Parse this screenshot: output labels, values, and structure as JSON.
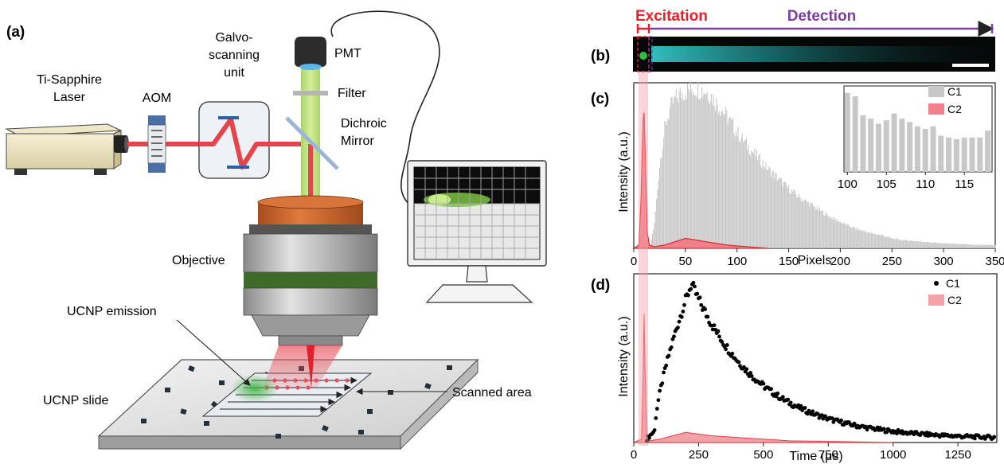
{
  "panel_labels": {
    "a": "(a)",
    "b": "(b)",
    "c": "(c)",
    "d": "(d)"
  },
  "setup": {
    "laser_line1": "Ti-Sapphire",
    "laser_line2": "Laser",
    "aom": "AOM",
    "galvo_line1": "Galvo-",
    "galvo_line2": "scanning",
    "galvo_line3": "unit",
    "pmt": "PMT",
    "filter": "Filter",
    "dichroic_line1": "Dichroic",
    "dichroic_line2": "Mirror",
    "objective": "Objective",
    "ucnp_emission": "UCNP emission",
    "ucnp_slide": "UCNP slide",
    "scanned_area": "Scanned area"
  },
  "panel_b": {
    "excitation": "Excitation",
    "detection": "Detection"
  },
  "colors": {
    "excitation": "#e8202a",
    "detection": "#7b3fa0",
    "laser_beam": "#e4454a",
    "emission_green": "#7dc241",
    "c1_bars": "#c8c8c8",
    "c2_red": "#e0404a",
    "c1_points": "#000000",
    "c2_fill": "#f4a0a6",
    "objective_copper": "#c8602a",
    "objective_green": "#3e6b2a"
  },
  "chart_data": [
    {
      "id": "c",
      "type": "bar",
      "xlabel": "Pixels",
      "ylabel": "Intensity (a.u.)",
      "xlim": [
        0,
        350
      ],
      "xticks": [
        0,
        50,
        100,
        150,
        200,
        250,
        300,
        350
      ],
      "legend": [
        "C1",
        "C2"
      ],
      "legend_position": "top-right",
      "series": [
        {
          "name": "C1",
          "style": "bars",
          "x": [
            16,
            20,
            25,
            30,
            35,
            40,
            45,
            50,
            55,
            60,
            65,
            70,
            75,
            80,
            85,
            90,
            95,
            100,
            110,
            120,
            130,
            140,
            150,
            160,
            170,
            180,
            190,
            200,
            210,
            220,
            230,
            240,
            250,
            260,
            270,
            280,
            290,
            300,
            310,
            320,
            330,
            340,
            348
          ],
          "y": [
            0.02,
            0.15,
            0.5,
            0.72,
            0.84,
            0.9,
            0.93,
            0.95,
            0.96,
            0.97,
            0.96,
            0.95,
            0.92,
            0.88,
            0.84,
            0.8,
            0.75,
            0.7,
            0.62,
            0.55,
            0.48,
            0.42,
            0.36,
            0.31,
            0.27,
            0.23,
            0.19,
            0.16,
            0.13,
            0.11,
            0.09,
            0.08,
            0.06,
            0.05,
            0.045,
            0.04,
            0.035,
            0.03,
            0.028,
            0.025,
            0.02,
            0.02,
            0.02
          ]
        },
        {
          "name": "C2",
          "style": "filled-peak",
          "x": [
            0,
            5,
            7,
            9,
            10,
            11,
            13,
            15,
            20,
            30,
            40,
            50,
            60,
            70,
            80,
            90,
            100,
            110,
            120,
            130
          ],
          "y": [
            0,
            0.02,
            0.3,
            0.78,
            0.82,
            0.6,
            0.1,
            0.02,
            0.01,
            0.02,
            0.04,
            0.06,
            0.05,
            0.04,
            0.03,
            0.02,
            0.015,
            0.01,
            0.005,
            0
          ]
        }
      ],
      "inset": {
        "type": "bar",
        "xlim": [
          100,
          119
        ],
        "xticks": [
          100,
          105,
          110,
          115
        ],
        "x": [
          100,
          101,
          102,
          103,
          104,
          105,
          106,
          107,
          108,
          109,
          110,
          111,
          112,
          113,
          114,
          115,
          116,
          117,
          118
        ],
        "values": [
          0.92,
          0.88,
          0.66,
          0.62,
          0.56,
          0.6,
          0.68,
          0.62,
          0.58,
          0.53,
          0.5,
          0.53,
          0.42,
          0.4,
          0.38,
          0.4,
          0.4,
          0.4,
          0.48
        ]
      }
    },
    {
      "id": "d",
      "type": "scatter",
      "xlabel": "Time (μs)",
      "ylabel": "Intensity (a.u.)",
      "xlim": [
        0,
        1400
      ],
      "xticks": [
        0,
        250,
        500,
        750,
        1000,
        1250
      ],
      "legend": [
        "C1",
        "C2"
      ],
      "legend_position": "top-right",
      "c1_model": {
        "peak_time": 220,
        "decay_constant": 260,
        "noise": 0.05
      },
      "series": [
        {
          "name": "C2",
          "style": "filled-peak",
          "x": [
            0,
            30,
            36,
            40,
            44,
            50,
            60,
            100,
            150,
            200,
            250,
            300,
            350,
            400,
            450,
            500,
            550,
            600,
            700,
            800,
            900,
            1000
          ],
          "y": [
            0,
            0.02,
            0.4,
            0.76,
            0.4,
            0.04,
            0.01,
            0.02,
            0.04,
            0.06,
            0.05,
            0.04,
            0.035,
            0.03,
            0.025,
            0.02,
            0.015,
            0.01,
            0.008,
            0.005,
            0.003,
            0
          ]
        }
      ]
    }
  ]
}
